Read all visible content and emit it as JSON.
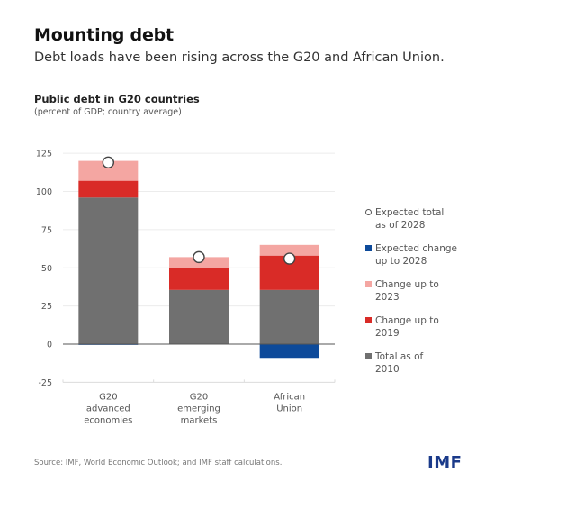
{
  "header": {
    "title": "Mounting debt",
    "subtitle": "Debt loads have been rising across the G20 and African Union."
  },
  "chart_data": {
    "type": "bar",
    "stacked": true,
    "title": "Public debt in G20 countries",
    "subtitle": "(percent of GDP; country average)",
    "categories": [
      [
        "G20",
        "advanced",
        "economies"
      ],
      [
        "G20",
        "emerging",
        "markets"
      ],
      [
        "African",
        "Union"
      ]
    ],
    "ylim": [
      -25,
      125
    ],
    "yticks": [
      125,
      100,
      75,
      50,
      25,
      0,
      -25
    ],
    "grid": true,
    "legend_position": "right",
    "series": [
      {
        "name": "Total as of 2010",
        "color": "#707070",
        "values": [
          96,
          35.5,
          35.5
        ]
      },
      {
        "name": "Change up to 2019",
        "color": "#d92b27",
        "values": [
          11,
          14.5,
          22.5
        ]
      },
      {
        "name": "Change up to 2023",
        "color": "#f4a6a2",
        "values": [
          13,
          7,
          7
        ]
      },
      {
        "name": "Expected change up to 2028",
        "color": "#0d4a9a",
        "values": [
          -0.5,
          0,
          -9
        ]
      }
    ],
    "markers": {
      "name": "Expected total as of 2028",
      "values": [
        119,
        57,
        56
      ]
    },
    "legend": [
      {
        "label": "Expected total\nas of 2028",
        "type": "circle"
      },
      {
        "label": "Expected change\nup to 2028",
        "color": "#0d4a9a"
      },
      {
        "label": "Change up to\n2023",
        "color": "#f4a6a2"
      },
      {
        "label": "Change up to\n2019",
        "color": "#d92b27"
      },
      {
        "label": "Total as of\n2010",
        "color": "#707070"
      }
    ]
  },
  "footer": {
    "source": "Source: IMF, World Economic Outlook; and IMF staff calculations.",
    "logo": "IMF"
  }
}
